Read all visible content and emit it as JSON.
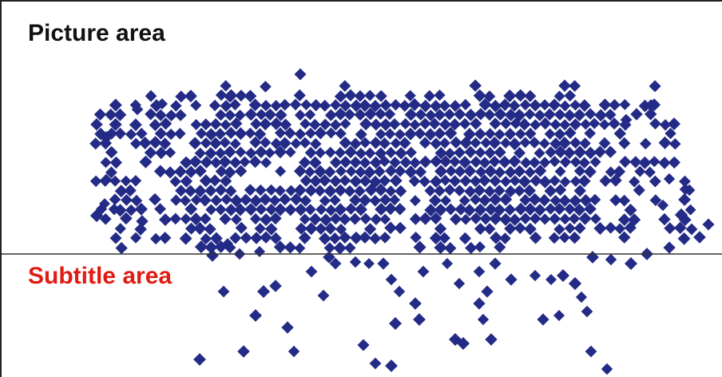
{
  "labels": {
    "picture_area": "Picture area",
    "subtitle_area": "Subtitle area"
  },
  "colors": {
    "background": "#ffffff",
    "border": "#222222",
    "divider": "#333333",
    "dot": "#232b86",
    "picture_label": "#111111",
    "subtitle_label": "#e01b12"
  },
  "icons": {
    "dot": "diamond-dot-icon"
  }
}
